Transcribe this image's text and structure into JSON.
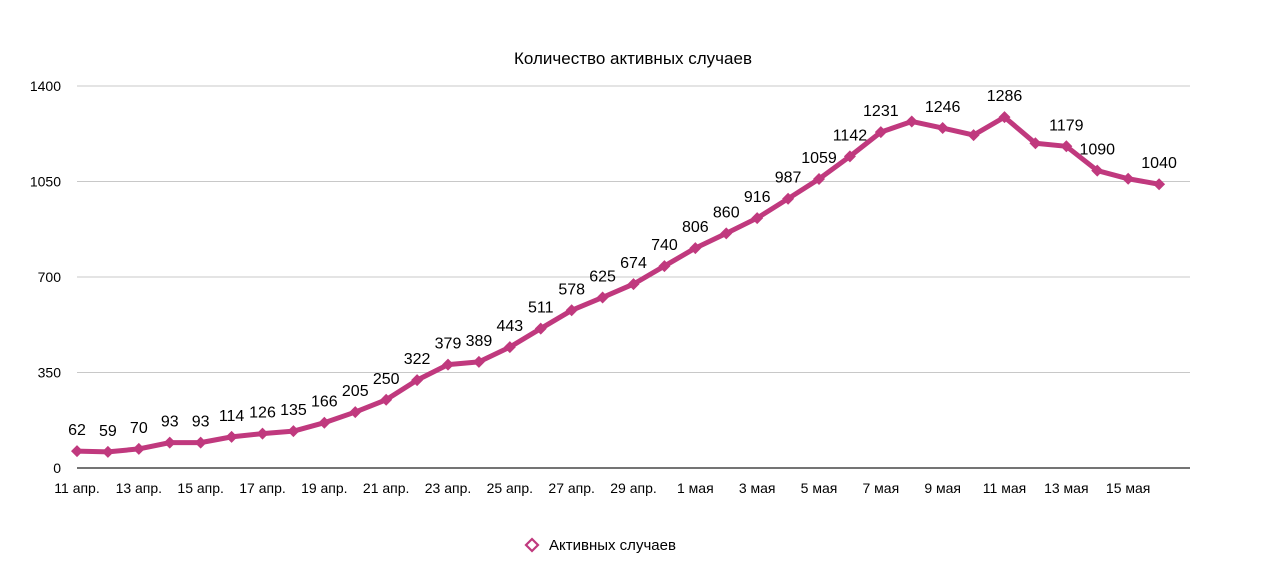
{
  "chart_data": {
    "type": "line",
    "title": "Количество активных случаев",
    "xlabel": "",
    "ylabel": "",
    "ylim": [
      0,
      1400
    ],
    "yticks": [
      "0",
      "350",
      "700",
      "1050",
      "1400"
    ],
    "grid": true,
    "legend_position": "bottom",
    "x_tick_labels": [
      "11 апр.",
      "13 апр.",
      "15 апр.",
      "17 апр.",
      "19 апр.",
      "21 апр.",
      "23 апр.",
      "25 апр.",
      "27 апр.",
      "29 апр.",
      "1 мая",
      "3 мая",
      "5 мая",
      "7 мая",
      "9 мая",
      "11 мая",
      "13 мая",
      "15 мая"
    ],
    "series": [
      {
        "name": "Активных случаев",
        "color": "#c0397e",
        "marker": "diamond",
        "values": [
          62,
          59,
          70,
          93,
          93,
          114,
          126,
          135,
          166,
          205,
          250,
          322,
          379,
          389,
          443,
          511,
          578,
          625,
          674,
          740,
          806,
          860,
          916,
          987,
          1059,
          1142,
          1231,
          1270,
          1246,
          1220,
          1286,
          1190,
          1179,
          1090,
          1060,
          1040
        ],
        "data_labels": [
          "62",
          "59",
          "70",
          "93",
          "93",
          "114",
          "126",
          "135",
          "166",
          "205",
          "250",
          "322",
          "379",
          "389",
          "443",
          "511",
          "578",
          "625",
          "674",
          "740",
          "806",
          "860",
          "916",
          "987",
          "1059",
          "1142",
          "1231",
          "",
          "1246",
          "",
          "1286",
          "",
          "1179",
          "1090",
          "",
          "1040"
        ]
      }
    ]
  }
}
